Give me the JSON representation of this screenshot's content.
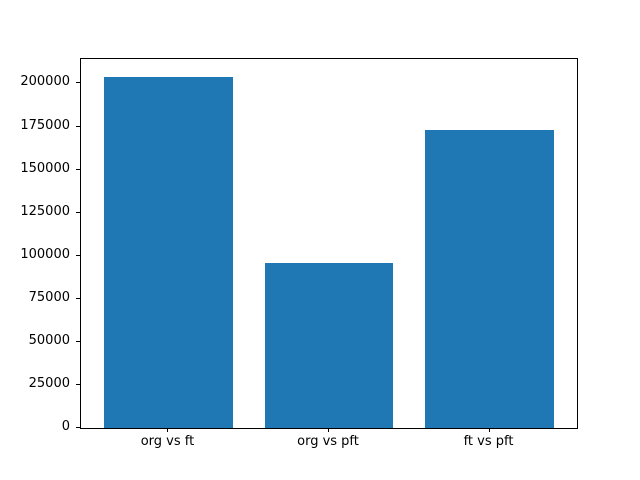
{
  "chart_data": {
    "type": "bar",
    "title": "",
    "xlabel": "",
    "ylabel": "",
    "categories": [
      "org vs ft",
      "org vs pft",
      "ft vs pft"
    ],
    "values": [
      204000,
      95700,
      172800
    ],
    "yticks": [
      0,
      25000,
      50000,
      75000,
      100000,
      125000,
      150000,
      175000,
      200000
    ],
    "ylim": [
      0,
      214200
    ],
    "xlim": [
      -0.545,
      2.545
    ],
    "bar_relative_width": 0.8,
    "bar_color": "#1f77b4",
    "axes_color": "#000000",
    "background_color": "#ffffff",
    "grid": false,
    "legend": null
  }
}
